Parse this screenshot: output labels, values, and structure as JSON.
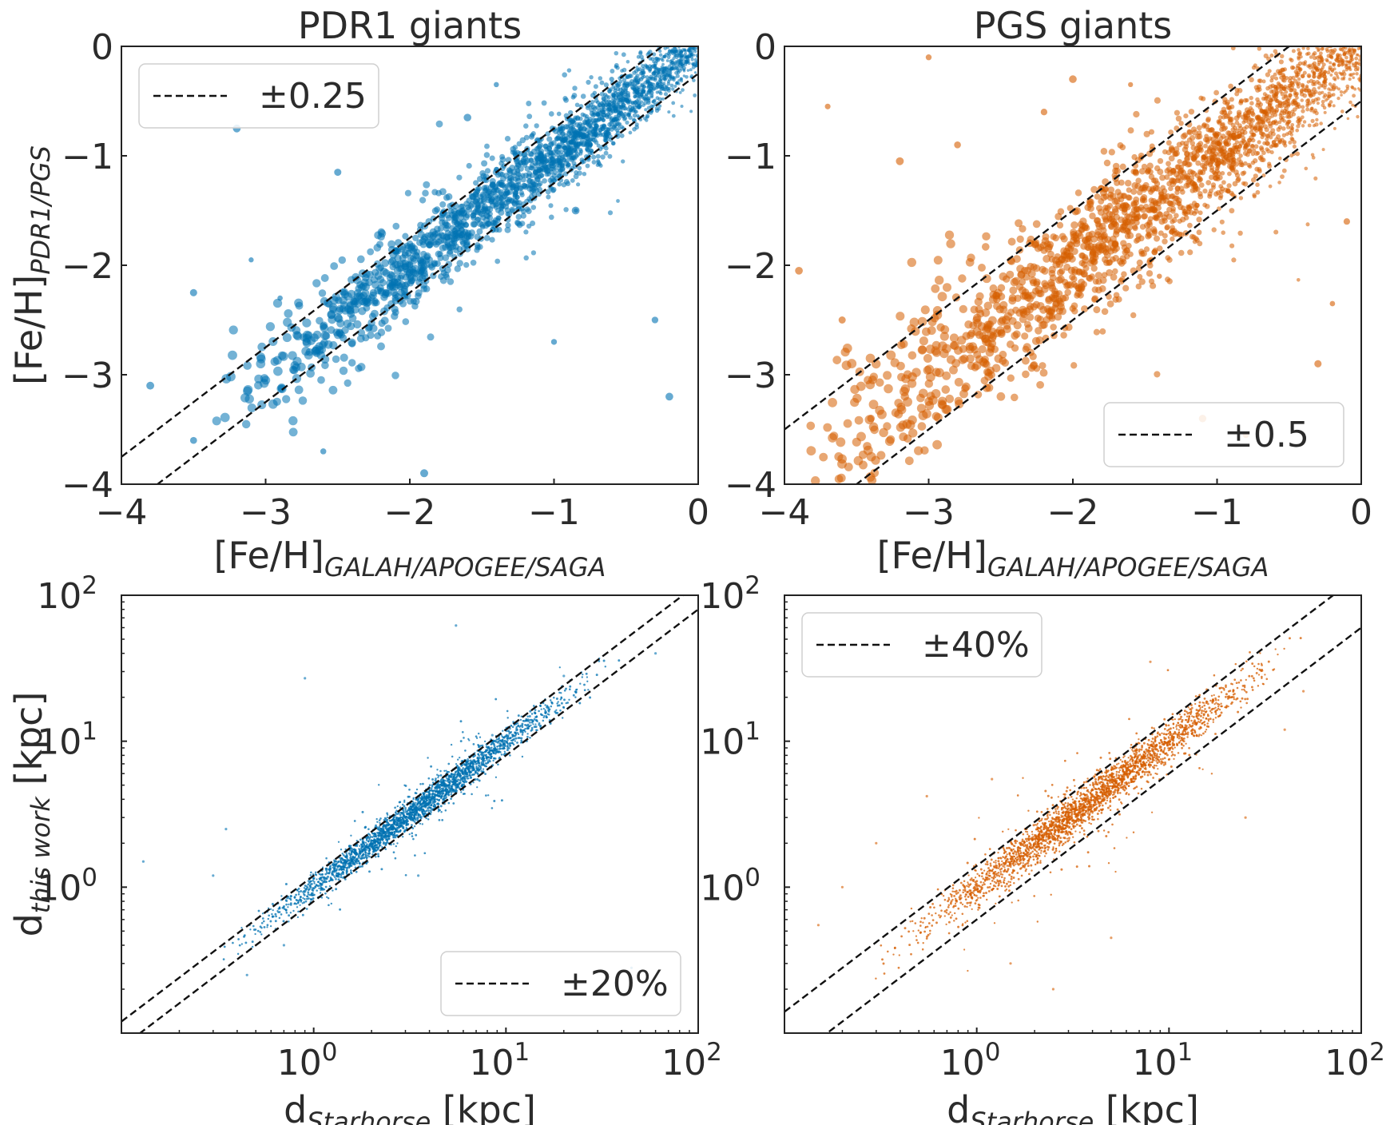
{
  "colors": {
    "blue": "#0072B2",
    "orange": "#D55E00",
    "line": "#111111",
    "text": "#2b2b2b"
  },
  "chart_data": [
    {
      "id": "p1",
      "type": "scatter",
      "title": "PDR1 giants",
      "xlabel": {
        "main": "[Fe/H]",
        "sub": "GALAH/APOGEE/SAGA"
      },
      "ylabel": {
        "main": "[Fe/H]",
        "sub": "PDR1/PGS"
      },
      "xlim": [
        -4,
        0
      ],
      "ylim": [
        -4,
        0
      ],
      "scale": "linear",
      "xticks": [
        -4,
        -3,
        -2,
        -1,
        0
      ],
      "yticks": [
        -4,
        -3,
        -2,
        -1,
        0
      ],
      "xtick_labels": [
        "−4",
        "−3",
        "−2",
        "−1",
        "0"
      ],
      "ytick_labels": [
        "−4",
        "−3",
        "−2",
        "−1",
        "0"
      ],
      "color": "blue",
      "legend": {
        "label": "±0.25",
        "loc": "upper-left"
      },
      "band": {
        "kind": "offset",
        "value": 0.25
      },
      "density": {
        "xmin": -3.4,
        "xmax": 0,
        "peak": -0.3,
        "spread": 0.13,
        "tail": 0.35
      },
      "outliers": [
        [
          -3.8,
          -3.1
        ],
        [
          -3.5,
          -2.25
        ],
        [
          -3.1,
          -1.95
        ],
        [
          -2.9,
          -2.3
        ],
        [
          -2.6,
          -3.7
        ],
        [
          -2.5,
          -1.15
        ],
        [
          -1.9,
          -3.9
        ],
        [
          -1.6,
          -0.65
        ],
        [
          -1.4,
          -0.35
        ],
        [
          -1.0,
          -2.7
        ],
        [
          -0.85,
          -1.5
        ],
        [
          -0.6,
          -0.3
        ],
        [
          -0.3,
          -2.5
        ],
        [
          -0.2,
          -3.2
        ],
        [
          -3.2,
          -0.75
        ],
        [
          -3.5,
          -3.6
        ]
      ]
    },
    {
      "id": "p2",
      "type": "scatter",
      "title": "PGS giants",
      "xlabel": {
        "main": "[Fe/H]",
        "sub": "GALAH/APOGEE/SAGA"
      },
      "ylabel": null,
      "xlim": [
        -4,
        0
      ],
      "ylim": [
        -4,
        0
      ],
      "scale": "linear",
      "xticks": [
        -4,
        -3,
        -2,
        -1,
        0
      ],
      "yticks": [
        -4,
        -3,
        -2,
        -1,
        0
      ],
      "xtick_labels": [
        "−4",
        "−3",
        "−2",
        "−1",
        "0"
      ],
      "ytick_labels": [
        "−4",
        "−3",
        "−2",
        "−1",
        "0"
      ],
      "color": "orange",
      "legend": {
        "label": "±0.5",
        "loc": "lower-right"
      },
      "band": {
        "kind": "offset",
        "value": 0.5
      },
      "density": {
        "xmin": -4,
        "xmax": 0,
        "peak": -0.3,
        "spread": 0.2,
        "tail": 0.5
      },
      "outliers": [
        [
          -3.9,
          -2.05
        ],
        [
          -3.7,
          -0.55
        ],
        [
          -3.6,
          -2.5
        ],
        [
          -3.4,
          -3.4
        ],
        [
          -3.2,
          -1.05
        ],
        [
          -2.8,
          -0.9
        ],
        [
          -2.2,
          -0.6
        ],
        [
          -1.6,
          -0.35
        ],
        [
          -1.4,
          -2.1
        ],
        [
          -1.1,
          -3.4
        ],
        [
          -0.8,
          -3.55
        ],
        [
          -0.3,
          -2.9
        ],
        [
          -0.2,
          -2.35
        ],
        [
          -0.1,
          -1.6
        ],
        [
          -3.0,
          -0.1
        ],
        [
          -2.0,
          -0.3
        ]
      ]
    },
    {
      "id": "p3",
      "type": "scatter",
      "title": "",
      "xlabel": {
        "main": "d",
        "sub": "Starhorse",
        "unit": " [kpc]"
      },
      "ylabel": {
        "main": "d",
        "sub": "this work",
        "unit": " [kpc]"
      },
      "xlim": [
        0.1,
        100
      ],
      "ylim": [
        0.1,
        100
      ],
      "scale": "log",
      "xticks": [
        1,
        10,
        100
      ],
      "yticks": [
        1,
        10,
        100
      ],
      "tick_base": "10",
      "tick_exps": [
        "0",
        "1",
        "2"
      ],
      "color": "blue",
      "legend": {
        "label": "±20%",
        "loc": "lower-right"
      },
      "band": {
        "kind": "factor",
        "value": 0.2
      },
      "density": {
        "xmin": 0.3,
        "xmax": 40,
        "spread": 0.05,
        "tail": 0.15
      },
      "outliers": [
        [
          0.13,
          1.5
        ],
        [
          0.45,
          0.25
        ],
        [
          0.3,
          1.2
        ],
        [
          3.5,
          1.2
        ],
        [
          5.5,
          62
        ],
        [
          0.9,
          27
        ],
        [
          8.5,
          11
        ],
        [
          45,
          0.28
        ],
        [
          20,
          28
        ],
        [
          60,
          40
        ],
        [
          0.7,
          0.4
        ],
        [
          0.35,
          2.5
        ]
      ]
    },
    {
      "id": "p4",
      "type": "scatter",
      "title": "",
      "xlabel": {
        "main": "d",
        "sub": "Starhorse",
        "unit": " [kpc]"
      },
      "ylabel": null,
      "xlim": [
        0.1,
        100
      ],
      "ylim": [
        0.1,
        100
      ],
      "scale": "log",
      "xticks": [
        1,
        10,
        100
      ],
      "yticks": [
        1,
        10,
        100
      ],
      "tick_base": "10",
      "tick_exps": [
        "0",
        "1",
        "2"
      ],
      "color": "orange",
      "legend": {
        "label": "±40%",
        "loc": "upper-left"
      },
      "band": {
        "kind": "factor",
        "value": 0.4
      },
      "density": {
        "xmin": 0.25,
        "xmax": 60,
        "spread": 0.07,
        "tail": 0.22
      },
      "outliers": [
        [
          0.2,
          1.0
        ],
        [
          0.15,
          0.55
        ],
        [
          0.55,
          4.2
        ],
        [
          1.2,
          5.5
        ],
        [
          2.5,
          0.2
        ],
        [
          5,
          0.45
        ],
        [
          25,
          3
        ],
        [
          50,
          22
        ],
        [
          40,
          12
        ],
        [
          0.3,
          2.0
        ],
        [
          8,
          35
        ],
        [
          1.5,
          0.3
        ]
      ]
    }
  ]
}
